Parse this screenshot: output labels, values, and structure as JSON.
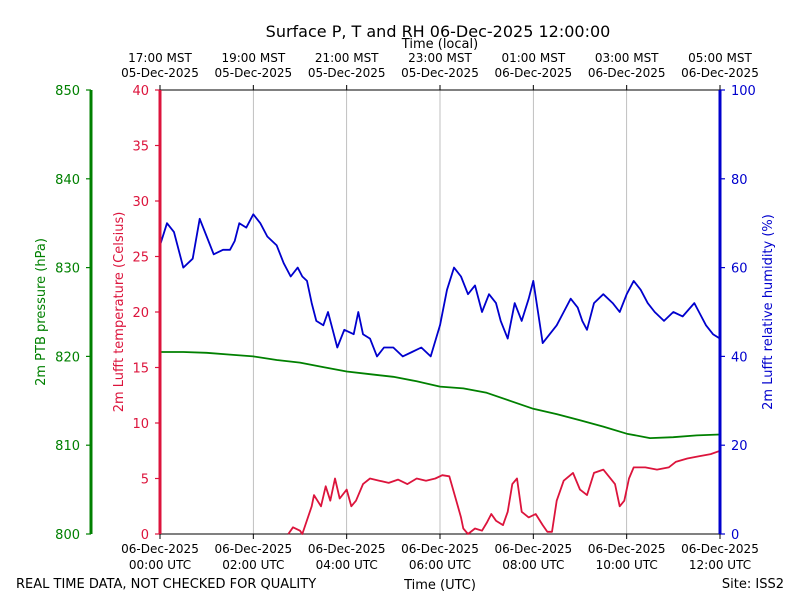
{
  "chart_data": {
    "type": "line",
    "title": "Surface P, T and RH 06-Dec-2025 12:00:00",
    "xlabel": "Time (UTC)",
    "xlabel_top": "Time (local)",
    "footer_left": "REAL TIME DATA, NOT CHECKED FOR QUALITY",
    "footer_right": "Site: ISS2",
    "x_range_hours": [
      0,
      12
    ],
    "grid": "vertical",
    "x_ticks_utc": [
      {
        "hour": 0,
        "date": "06-Dec-2025",
        "time": "00:00 UTC"
      },
      {
        "hour": 2,
        "date": "06-Dec-2025",
        "time": "02:00 UTC"
      },
      {
        "hour": 4,
        "date": "06-Dec-2025",
        "time": "04:00 UTC"
      },
      {
        "hour": 6,
        "date": "06-Dec-2025",
        "time": "06:00 UTC"
      },
      {
        "hour": 8,
        "date": "06-Dec-2025",
        "time": "08:00 UTC"
      },
      {
        "hour": 10,
        "date": "06-Dec-2025",
        "time": "10:00 UTC"
      },
      {
        "hour": 12,
        "date": "06-Dec-2025",
        "time": "12:00 UTC"
      }
    ],
    "x_ticks_local": [
      {
        "hour": 0,
        "time": "17:00 MST",
        "date": "05-Dec-2025"
      },
      {
        "hour": 2,
        "time": "19:00 MST",
        "date": "05-Dec-2025"
      },
      {
        "hour": 4,
        "time": "21:00 MST",
        "date": "05-Dec-2025"
      },
      {
        "hour": 6,
        "time": "23:00 MST",
        "date": "05-Dec-2025"
      },
      {
        "hour": 8,
        "time": "01:00 MST",
        "date": "06-Dec-2025"
      },
      {
        "hour": 10,
        "time": "03:00 MST",
        "date": "06-Dec-2025"
      },
      {
        "hour": 12,
        "time": "05:00 MST",
        "date": "06-Dec-2025"
      }
    ],
    "axes": {
      "pressure": {
        "label": "2m PTB pressure (hPa)",
        "range": [
          800,
          850
        ],
        "ticks": [
          "800",
          "810",
          "820",
          "830",
          "840",
          "850"
        ],
        "color": "#008000"
      },
      "temperature": {
        "label": "2m Lufft temperature (Celsius)",
        "range": [
          0,
          40
        ],
        "ticks": [
          "0",
          "5",
          "10",
          "15",
          "20",
          "25",
          "30",
          "35",
          "40"
        ],
        "color": "#dc143c"
      },
      "humidity": {
        "label": "2m Lufft relative humidity (%)",
        "range": [
          0,
          100
        ],
        "ticks": [
          "0",
          "20",
          "40",
          "60",
          "80",
          "100"
        ],
        "color": "#0000cd"
      }
    },
    "series": [
      {
        "key": "pressure",
        "color": "#008000",
        "points": [
          [
            0.0,
            820.5
          ],
          [
            0.5,
            820.5
          ],
          [
            1.0,
            820.4
          ],
          [
            1.5,
            820.2
          ],
          [
            2.0,
            820.0
          ],
          [
            2.5,
            819.6
          ],
          [
            3.0,
            819.3
          ],
          [
            3.5,
            818.8
          ],
          [
            4.0,
            818.3
          ],
          [
            4.5,
            818.0
          ],
          [
            5.0,
            817.7
          ],
          [
            5.5,
            817.2
          ],
          [
            6.0,
            816.6
          ],
          [
            6.5,
            816.4
          ],
          [
            7.0,
            815.9
          ],
          [
            7.5,
            815.0
          ],
          [
            8.0,
            814.1
          ],
          [
            8.5,
            813.5
          ],
          [
            9.0,
            812.8
          ],
          [
            9.5,
            812.1
          ],
          [
            10.0,
            811.3
          ],
          [
            10.5,
            810.8
          ],
          [
            11.0,
            810.9
          ],
          [
            11.5,
            811.1
          ],
          [
            12.0,
            811.2
          ]
        ]
      },
      {
        "key": "temperature",
        "color": "#dc143c",
        "points": [
          [
            2.75,
            0.0
          ],
          [
            2.85,
            0.6
          ],
          [
            3.0,
            0.3
          ],
          [
            3.05,
            0.0
          ],
          [
            3.25,
            2.5
          ],
          [
            3.3,
            3.5
          ],
          [
            3.45,
            2.5
          ],
          [
            3.55,
            4.3
          ],
          [
            3.65,
            3.0
          ],
          [
            3.75,
            5.0
          ],
          [
            3.85,
            3.2
          ],
          [
            4.0,
            4.0
          ],
          [
            4.1,
            2.5
          ],
          [
            4.2,
            3.0
          ],
          [
            4.35,
            4.5
          ],
          [
            4.5,
            5.0
          ],
          [
            4.7,
            4.8
          ],
          [
            4.9,
            4.6
          ],
          [
            5.1,
            4.9
          ],
          [
            5.3,
            4.5
          ],
          [
            5.5,
            5.0
          ],
          [
            5.7,
            4.8
          ],
          [
            5.9,
            5.0
          ],
          [
            6.05,
            5.3
          ],
          [
            6.2,
            5.2
          ],
          [
            6.35,
            3.0
          ],
          [
            6.45,
            1.5
          ],
          [
            6.5,
            0.5
          ],
          [
            6.6,
            0.0
          ],
          [
            6.75,
            0.5
          ],
          [
            6.9,
            0.3
          ],
          [
            7.0,
            1.0
          ],
          [
            7.1,
            1.8
          ],
          [
            7.2,
            1.2
          ],
          [
            7.35,
            0.8
          ],
          [
            7.45,
            2.0
          ],
          [
            7.55,
            4.5
          ],
          [
            7.65,
            5.0
          ],
          [
            7.75,
            2.0
          ],
          [
            7.9,
            1.5
          ],
          [
            8.05,
            1.8
          ],
          [
            8.2,
            0.8
          ],
          [
            8.3,
            0.2
          ],
          [
            8.4,
            0.2
          ],
          [
            8.5,
            3.0
          ],
          [
            8.65,
            4.8
          ],
          [
            8.85,
            5.5
          ],
          [
            9.0,
            4.0
          ],
          [
            9.15,
            3.5
          ],
          [
            9.3,
            5.5
          ],
          [
            9.5,
            5.8
          ],
          [
            9.75,
            4.5
          ],
          [
            9.85,
            2.5
          ],
          [
            9.95,
            3.0
          ],
          [
            10.05,
            5.0
          ],
          [
            10.15,
            6.0
          ],
          [
            10.4,
            6.0
          ],
          [
            10.65,
            5.8
          ],
          [
            10.9,
            6.0
          ],
          [
            11.05,
            6.5
          ],
          [
            11.3,
            6.8
          ],
          [
            11.55,
            7.0
          ],
          [
            11.8,
            7.2
          ],
          [
            12.0,
            7.5
          ]
        ]
      },
      {
        "key": "humidity",
        "color": "#0000cd",
        "points": [
          [
            0.0,
            65
          ],
          [
            0.15,
            70
          ],
          [
            0.3,
            68
          ],
          [
            0.5,
            60
          ],
          [
            0.7,
            62
          ],
          [
            0.85,
            71
          ],
          [
            1.0,
            67
          ],
          [
            1.15,
            63
          ],
          [
            1.35,
            64
          ],
          [
            1.5,
            64
          ],
          [
            1.6,
            66
          ],
          [
            1.7,
            70
          ],
          [
            1.85,
            69
          ],
          [
            2.0,
            72
          ],
          [
            2.15,
            70
          ],
          [
            2.3,
            67
          ],
          [
            2.5,
            65
          ],
          [
            2.65,
            61
          ],
          [
            2.8,
            58
          ],
          [
            2.95,
            60
          ],
          [
            3.05,
            58
          ],
          [
            3.15,
            57
          ],
          [
            3.25,
            52
          ],
          [
            3.35,
            48
          ],
          [
            3.5,
            47
          ],
          [
            3.6,
            50
          ],
          [
            3.7,
            46
          ],
          [
            3.8,
            42
          ],
          [
            3.95,
            46
          ],
          [
            4.15,
            45
          ],
          [
            4.25,
            50
          ],
          [
            4.35,
            45
          ],
          [
            4.5,
            44
          ],
          [
            4.65,
            40
          ],
          [
            4.8,
            42
          ],
          [
            5.0,
            42
          ],
          [
            5.2,
            40
          ],
          [
            5.4,
            41
          ],
          [
            5.6,
            42
          ],
          [
            5.8,
            40
          ],
          [
            6.0,
            47
          ],
          [
            6.15,
            55
          ],
          [
            6.3,
            60
          ],
          [
            6.45,
            58
          ],
          [
            6.6,
            54
          ],
          [
            6.75,
            56
          ],
          [
            6.9,
            50
          ],
          [
            7.05,
            54
          ],
          [
            7.2,
            52
          ],
          [
            7.3,
            48
          ],
          [
            7.45,
            44
          ],
          [
            7.6,
            52
          ],
          [
            7.75,
            48
          ],
          [
            7.9,
            53
          ],
          [
            8.0,
            57
          ],
          [
            8.1,
            50
          ],
          [
            8.2,
            43
          ],
          [
            8.35,
            45
          ],
          [
            8.5,
            47
          ],
          [
            8.65,
            50
          ],
          [
            8.8,
            53
          ],
          [
            8.95,
            51
          ],
          [
            9.05,
            48
          ],
          [
            9.15,
            46
          ],
          [
            9.3,
            52
          ],
          [
            9.5,
            54
          ],
          [
            9.7,
            52
          ],
          [
            9.85,
            50
          ],
          [
            10.0,
            54
          ],
          [
            10.15,
            57
          ],
          [
            10.3,
            55
          ],
          [
            10.45,
            52
          ],
          [
            10.6,
            50
          ],
          [
            10.8,
            48
          ],
          [
            11.0,
            50
          ],
          [
            11.2,
            49
          ],
          [
            11.45,
            52
          ],
          [
            11.55,
            50
          ],
          [
            11.7,
            47
          ],
          [
            11.85,
            45
          ],
          [
            12.0,
            44
          ]
        ]
      }
    ]
  }
}
